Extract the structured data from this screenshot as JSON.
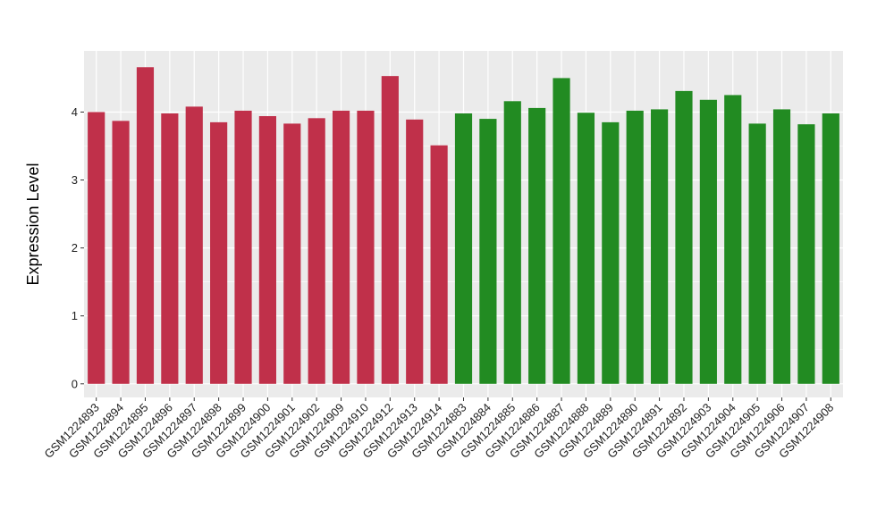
{
  "chart_data": {
    "type": "bar",
    "title": "",
    "xlabel": "",
    "ylabel": "Expression Level",
    "ylim": [
      -0.2,
      4.9
    ],
    "yticks": [
      0,
      1,
      2,
      3,
      4
    ],
    "grid": true,
    "legend": "none",
    "colors": {
      "group1": "#c0304a",
      "group2": "#228b22",
      "panel": "#ebebeb",
      "grid": "#ffffff"
    },
    "categories": [
      "GSM1224893",
      "GSM1224894",
      "GSM1224895",
      "GSM1224896",
      "GSM1224897",
      "GSM1224898",
      "GSM1224899",
      "GSM1224900",
      "GSM1224901",
      "GSM1224902",
      "GSM1224909",
      "GSM1224910",
      "GSM1224912",
      "GSM1224913",
      "GSM1224914",
      "GSM1224883",
      "GSM1224884",
      "GSM1224885",
      "GSM1224886",
      "GSM1224887",
      "GSM1224888",
      "GSM1224889",
      "GSM1224890",
      "GSM1224891",
      "GSM1224892",
      "GSM1224903",
      "GSM1224904",
      "GSM1224905",
      "GSM1224906",
      "GSM1224907",
      "GSM1224908"
    ],
    "values": [
      4.0,
      3.87,
      4.66,
      3.98,
      4.08,
      3.85,
      4.02,
      3.94,
      3.83,
      3.91,
      4.02,
      4.02,
      4.53,
      3.89,
      3.51,
      3.98,
      3.9,
      4.16,
      4.06,
      4.5,
      3.99,
      3.85,
      4.02,
      4.04,
      4.31,
      4.18,
      4.25,
      3.83,
      4.04,
      3.82,
      3.98
    ],
    "groups": [
      1,
      1,
      1,
      1,
      1,
      1,
      1,
      1,
      1,
      1,
      1,
      1,
      1,
      1,
      1,
      2,
      2,
      2,
      2,
      2,
      2,
      2,
      2,
      2,
      2,
      2,
      2,
      2,
      2,
      2,
      2
    ]
  }
}
